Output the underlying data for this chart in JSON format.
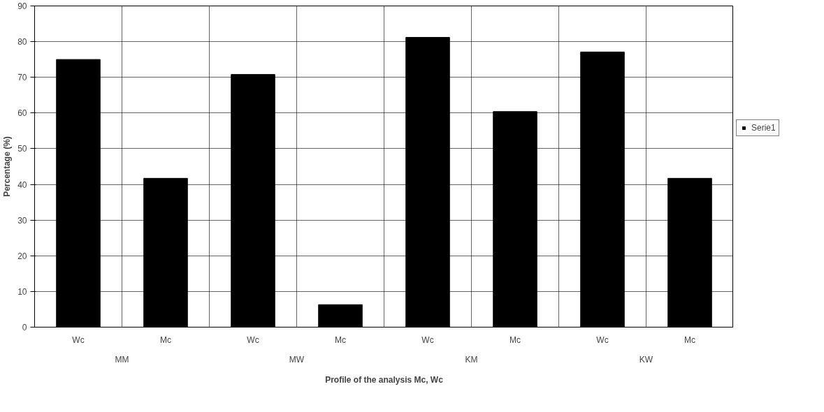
{
  "chart_data": {
    "type": "bar",
    "xlabel": "Profile of the analysis Mc, Wc",
    "ylabel": "Percentage (%)",
    "categories": [
      "Wc",
      "Mc",
      "Wc",
      "Mc",
      "Wc",
      "Mc",
      "Wc",
      "Mc"
    ],
    "series": [
      {
        "name": "Serie1",
        "color": "#000000",
        "values": [
          75,
          41.7,
          70.8,
          6.3,
          81.2,
          60.4,
          77.1,
          41.7
        ]
      }
    ],
    "annotations": [
      "MM",
      "MW",
      "KM",
      "KW"
    ],
    "ylim": [
      0,
      90
    ],
    "yticks": [
      0,
      10,
      20,
      30,
      40,
      50,
      60,
      70,
      80,
      90
    ],
    "grid": true,
    "legend": "right"
  }
}
